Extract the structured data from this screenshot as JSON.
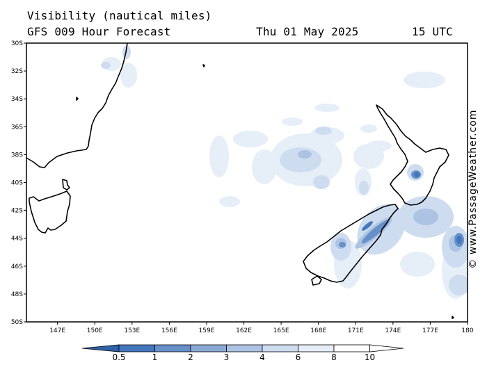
{
  "header": {
    "title": "Visibility (nautical miles)",
    "subtitle": "GFS 009 Hour Forecast",
    "date": "Thu 01 May 2025",
    "time": "15 UTC"
  },
  "credit": "© www.PassageWeather.com",
  "axes": {
    "lat_labels": [
      "30S",
      "32S",
      "34S",
      "36S",
      "38S",
      "40S",
      "42S",
      "44S",
      "46S",
      "48S",
      "50S"
    ],
    "lat_values": [
      -30,
      -32,
      -34,
      -36,
      -38,
      -40,
      -42,
      -44,
      -46,
      -48,
      -50
    ],
    "lon_labels": [
      "147E",
      "150E",
      "153E",
      "156E",
      "159E",
      "162E",
      "165E",
      "168E",
      "171E",
      "174E",
      "177E",
      "180"
    ],
    "lon_values": [
      147,
      150,
      153,
      156,
      159,
      162,
      165,
      168,
      171,
      174,
      177,
      180
    ],
    "lat_range": [
      -50,
      -30
    ],
    "lon_range": [
      144.5,
      180
    ]
  },
  "legend": {
    "labels": [
      "0.5",
      "1",
      "2",
      "3",
      "4",
      "6",
      "8",
      "10"
    ],
    "colors": [
      "#2f62a8",
      "#4377bd",
      "#6690c8",
      "#8aa9d6",
      "#adc3e3",
      "#cddcef",
      "#e6eef8",
      "#ffffff"
    ]
  },
  "map_colors": {
    "land_outline": "#000000",
    "frame": "#000000"
  }
}
